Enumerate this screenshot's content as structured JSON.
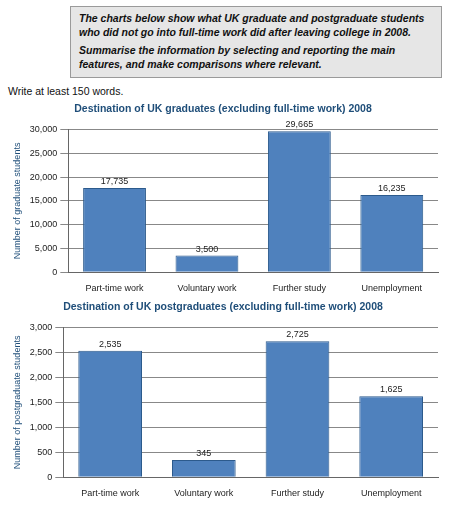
{
  "task": {
    "paragraphs": [
      "The charts below show what UK graduate and postgraduate students who did not go into full-time work did after leaving college in 2008.",
      "Summarise the information by selecting and reporting the main features, and make comparisons where relevant."
    ]
  },
  "instruction": "Write at least 150 words.",
  "chart_data": [
    {
      "type": "bar",
      "title": "Destination of UK graduates (excluding full-time work) 2008",
      "y_label": "Number of graduate students",
      "categories": [
        "Part-time work",
        "Voluntary work",
        "Further study",
        "Unemployment"
      ],
      "values": [
        17735,
        3500,
        29665,
        16235
      ],
      "value_labels": [
        "17,735",
        "3,500",
        "29,665",
        "16,235"
      ],
      "color": "#4f81bd",
      "ylim": [
        0,
        30000
      ],
      "yticks": [
        0,
        {
          "value": 5000,
          "label": "5,000"
        },
        {
          "value": 10000,
          "label": "10,000"
        },
        {
          "value": 15000,
          "label": "15,000"
        },
        {
          "value": 20000,
          "label": "20,000"
        },
        {
          "value": 25000,
          "label": "25,000"
        },
        {
          "value": 30000,
          "label": "30,000"
        }
      ],
      "grid": true,
      "data_labels": true
    },
    {
      "type": "bar",
      "title": "Destination of UK postgraduates (excluding full-time work) 2008",
      "y_label": "Number of postgraduate students",
      "categories": [
        "Part-time work",
        "Voluntary work",
        "Further study",
        "Unemployment"
      ],
      "values": [
        2535,
        345,
        2725,
        1625
      ],
      "value_labels": [
        "2,535",
        "345",
        "2,725",
        "1,625"
      ],
      "color": "#4f81bd",
      "ylim": [
        0,
        3000
      ],
      "yticks": [
        0,
        500,
        {
          "value": 1000,
          "label": "1,000"
        },
        {
          "value": 1500,
          "label": "1,500"
        },
        {
          "value": 2000,
          "label": "2,000"
        },
        {
          "value": 2500,
          "label": "2,500"
        },
        {
          "value": 3000,
          "label": "3,000"
        }
      ],
      "grid": true,
      "data_labels": true
    }
  ]
}
